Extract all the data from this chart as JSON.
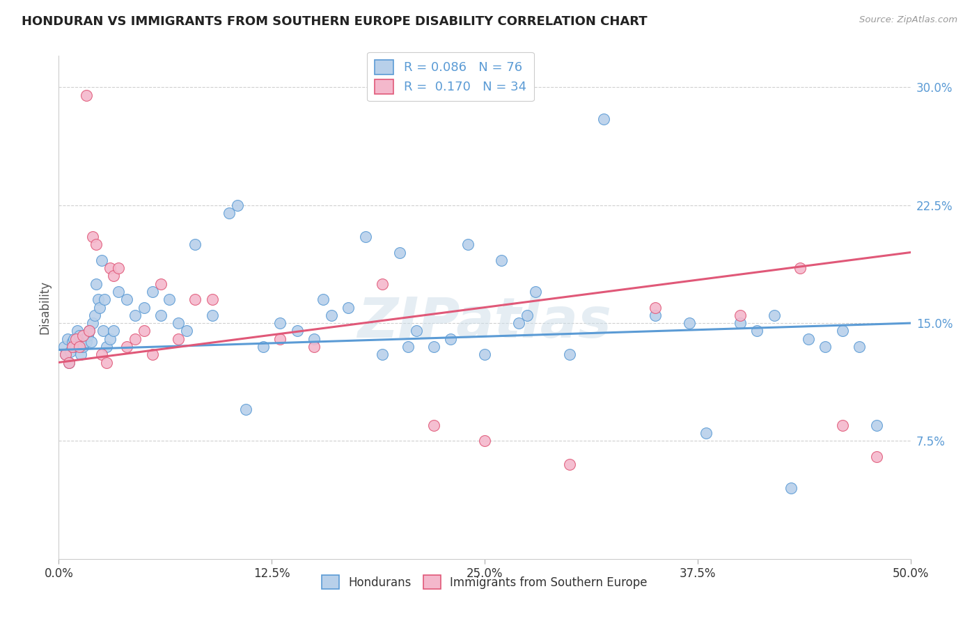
{
  "title": "HONDURAN VS IMMIGRANTS FROM SOUTHERN EUROPE DISABILITY CORRELATION CHART",
  "source": "Source: ZipAtlas.com",
  "xlabel_ticks": [
    "0.0%",
    "12.5%",
    "25.0%",
    "37.5%",
    "50.0%"
  ],
  "ylabel_ticks": [
    "7.5%",
    "15.0%",
    "22.5%",
    "30.0%"
  ],
  "ylabel": "Disability",
  "legend_label1": "Hondurans",
  "legend_label2": "Immigrants from Southern Europe",
  "R1": 0.086,
  "N1": 76,
  "R2": 0.17,
  "N2": 34,
  "color1": "#b8d0ea",
  "color2": "#f4b8cc",
  "line_color1": "#5b9bd5",
  "line_color2": "#e05878",
  "blue_x": [
    0.3,
    0.4,
    0.5,
    0.6,
    0.7,
    0.8,
    0.9,
    1.0,
    1.1,
    1.2,
    1.3,
    1.4,
    1.5,
    1.6,
    1.7,
    1.8,
    1.9,
    2.0,
    2.1,
    2.2,
    2.3,
    2.4,
    2.5,
    2.6,
    2.7,
    2.8,
    3.0,
    3.2,
    3.5,
    4.0,
    4.5,
    5.0,
    5.5,
    6.0,
    6.5,
    7.0,
    7.5,
    8.0,
    9.0,
    10.0,
    11.0,
    12.0,
    13.0,
    14.0,
    15.0,
    16.0,
    17.0,
    18.0,
    19.0,
    20.0,
    21.0,
    22.0,
    23.0,
    24.0,
    25.0,
    26.0,
    27.0,
    28.0,
    30.0,
    32.0,
    35.0,
    37.0,
    38.0,
    40.0,
    41.0,
    42.0,
    44.0,
    45.0,
    46.0,
    47.0,
    48.0,
    10.5,
    15.5,
    20.5,
    27.5,
    43.0
  ],
  "blue_y": [
    13.5,
    13.0,
    14.0,
    12.5,
    13.2,
    13.8,
    14.0,
    13.5,
    14.5,
    14.2,
    13.0,
    13.5,
    14.0,
    13.8,
    14.2,
    14.5,
    13.8,
    15.0,
    15.5,
    17.5,
    16.5,
    16.0,
    19.0,
    14.5,
    16.5,
    13.5,
    14.0,
    14.5,
    17.0,
    16.5,
    15.5,
    16.0,
    17.0,
    15.5,
    16.5,
    15.0,
    14.5,
    20.0,
    15.5,
    22.0,
    9.5,
    13.5,
    15.0,
    14.5,
    14.0,
    15.5,
    16.0,
    20.5,
    13.0,
    19.5,
    14.5,
    13.5,
    14.0,
    20.0,
    13.0,
    19.0,
    15.0,
    17.0,
    13.0,
    28.0,
    15.5,
    15.0,
    8.0,
    15.0,
    14.5,
    15.5,
    14.0,
    13.5,
    14.5,
    13.5,
    8.5,
    22.5,
    16.5,
    13.5,
    15.5,
    4.5
  ],
  "pink_x": [
    0.4,
    0.6,
    0.8,
    1.0,
    1.2,
    1.4,
    1.6,
    1.8,
    2.0,
    2.2,
    2.5,
    2.8,
    3.0,
    3.2,
    3.5,
    4.0,
    4.5,
    5.0,
    5.5,
    6.0,
    7.0,
    8.0,
    9.0,
    13.0,
    15.0,
    19.0,
    22.0,
    25.0,
    30.0,
    35.0,
    40.0,
    43.5,
    46.0,
    48.0
  ],
  "pink_y": [
    13.0,
    12.5,
    13.5,
    14.0,
    13.5,
    14.2,
    29.5,
    14.5,
    20.5,
    20.0,
    13.0,
    12.5,
    18.5,
    18.0,
    18.5,
    13.5,
    14.0,
    14.5,
    13.0,
    17.5,
    14.0,
    16.5,
    16.5,
    14.0,
    13.5,
    17.5,
    8.5,
    7.5,
    6.0,
    16.0,
    15.5,
    18.5,
    8.5,
    6.5
  ],
  "watermark": "ZIPatlas",
  "xmin": 0.0,
  "xmax": 50.0,
  "ymin": 0.0,
  "ymax": 32.0,
  "blue_line_x0": 0.0,
  "blue_line_y0": 13.3,
  "blue_line_x1": 50.0,
  "blue_line_y1": 15.0,
  "pink_line_x0": 0.0,
  "pink_line_y0": 12.5,
  "pink_line_x1": 50.0,
  "pink_line_y1": 19.5
}
